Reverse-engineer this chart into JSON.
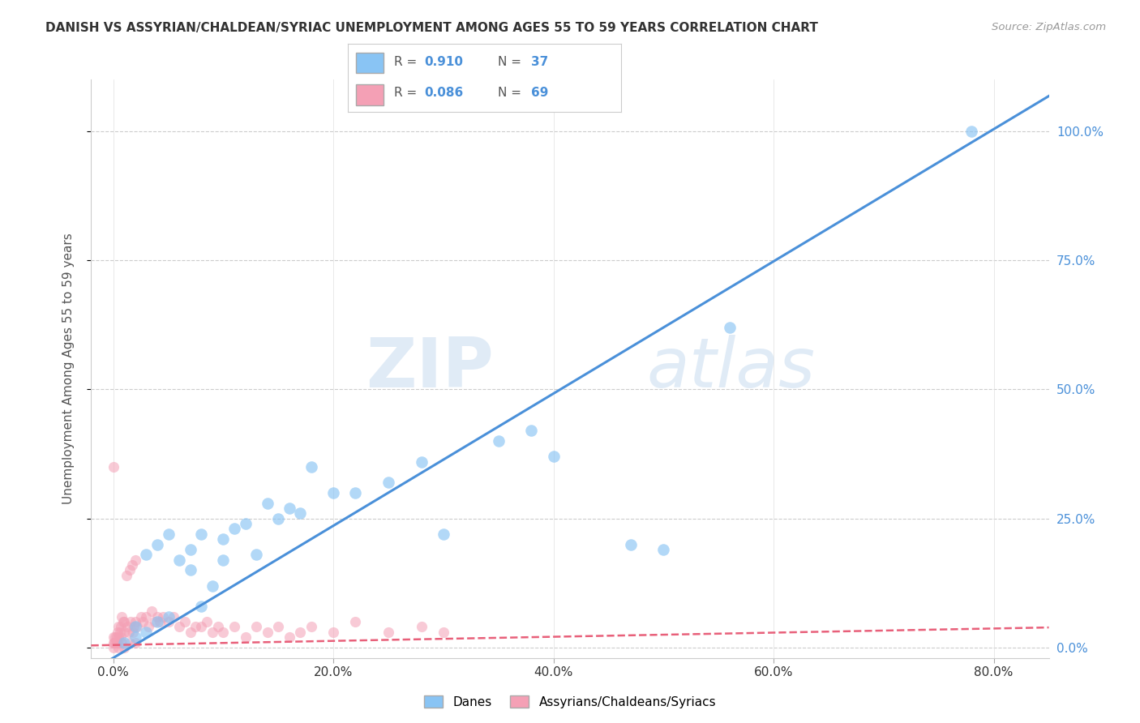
{
  "title": "DANISH VS ASSYRIAN/CHALDEAN/SYRIAC UNEMPLOYMENT AMONG AGES 55 TO 59 YEARS CORRELATION CHART",
  "source": "Source: ZipAtlas.com",
  "ylabel": "Unemployment Among Ages 55 to 59 years",
  "xlabel_ticks": [
    "0.0%",
    "20.0%",
    "40.0%",
    "60.0%",
    "80.0%"
  ],
  "xlabel_vals": [
    0.0,
    0.2,
    0.4,
    0.6,
    0.8
  ],
  "ylabel_ticks": [
    "0.0%",
    "25.0%",
    "50.0%",
    "75.0%",
    "100.0%"
  ],
  "ylabel_vals": [
    0.0,
    0.25,
    0.5,
    0.75,
    1.0
  ],
  "xlim": [
    -0.02,
    0.85
  ],
  "ylim": [
    -0.02,
    1.1
  ],
  "blue_R": "0.910",
  "blue_N": "37",
  "pink_R": "0.086",
  "pink_N": "69",
  "blue_color": "#89C4F4",
  "pink_color": "#F4A0B5",
  "blue_line_color": "#4A90D9",
  "pink_line_color": "#E8607A",
  "legend_label_1": "Danes",
  "legend_label_2": "Assyrians/Chaldeans/Syriacs",
  "watermark_zip": "ZIP",
  "watermark_atlas": "atlas",
  "background_color": "#ffffff",
  "grid_color": "#cccccc",
  "title_color": "#333333",
  "source_color": "#999999",
  "ylabel_color": "#555555",
  "tick_color_y": "#4A90D9",
  "tick_color_x": "#333333",
  "blue_line_slope": 1.28,
  "blue_line_intercept": -0.02,
  "pink_line_slope": 0.04,
  "pink_line_intercept": 0.005,
  "blue_x": [
    0.01,
    0.02,
    0.02,
    0.03,
    0.03,
    0.04,
    0.04,
    0.05,
    0.05,
    0.06,
    0.07,
    0.07,
    0.08,
    0.08,
    0.09,
    0.1,
    0.1,
    0.11,
    0.12,
    0.13,
    0.14,
    0.15,
    0.16,
    0.17,
    0.18,
    0.2,
    0.22,
    0.25,
    0.28,
    0.3,
    0.35,
    0.38,
    0.4,
    0.47,
    0.5,
    0.56,
    0.78
  ],
  "blue_y": [
    0.01,
    0.02,
    0.04,
    0.03,
    0.18,
    0.05,
    0.2,
    0.22,
    0.06,
    0.17,
    0.15,
    0.19,
    0.08,
    0.22,
    0.12,
    0.17,
    0.21,
    0.23,
    0.24,
    0.18,
    0.28,
    0.25,
    0.27,
    0.26,
    0.35,
    0.3,
    0.3,
    0.32,
    0.36,
    0.22,
    0.4,
    0.42,
    0.37,
    0.2,
    0.19,
    0.62,
    1.0
  ],
  "pink_x": [
    0.0,
    0.0,
    0.0,
    0.001,
    0.002,
    0.002,
    0.003,
    0.003,
    0.004,
    0.004,
    0.005,
    0.005,
    0.006,
    0.007,
    0.007,
    0.008,
    0.008,
    0.009,
    0.01,
    0.01,
    0.012,
    0.013,
    0.014,
    0.015,
    0.016,
    0.017,
    0.018,
    0.019,
    0.02,
    0.02,
    0.022,
    0.025,
    0.027,
    0.03,
    0.032,
    0.035,
    0.038,
    0.04,
    0.042,
    0.045,
    0.05,
    0.055,
    0.06,
    0.065,
    0.07,
    0.075,
    0.08,
    0.085,
    0.09,
    0.095,
    0.1,
    0.11,
    0.12,
    0.13,
    0.14,
    0.15,
    0.16,
    0.17,
    0.18,
    0.2,
    0.22,
    0.25,
    0.28,
    0.3,
    0.0,
    0.005,
    0.01,
    0.015,
    0.02
  ],
  "pink_y": [
    0.0,
    0.01,
    0.02,
    0.01,
    0.01,
    0.02,
    0.01,
    0.02,
    0.01,
    0.03,
    0.02,
    0.04,
    0.03,
    0.02,
    0.04,
    0.01,
    0.06,
    0.05,
    0.03,
    0.05,
    0.14,
    0.04,
    0.03,
    0.15,
    0.05,
    0.16,
    0.03,
    0.04,
    0.05,
    0.17,
    0.04,
    0.06,
    0.05,
    0.06,
    0.04,
    0.07,
    0.05,
    0.06,
    0.05,
    0.06,
    0.05,
    0.06,
    0.04,
    0.05,
    0.03,
    0.04,
    0.04,
    0.05,
    0.03,
    0.04,
    0.03,
    0.04,
    0.02,
    0.04,
    0.03,
    0.04,
    0.02,
    0.03,
    0.04,
    0.03,
    0.05,
    0.03,
    0.04,
    0.03,
    0.35,
    0.0,
    0.0,
    0.01,
    0.01
  ]
}
